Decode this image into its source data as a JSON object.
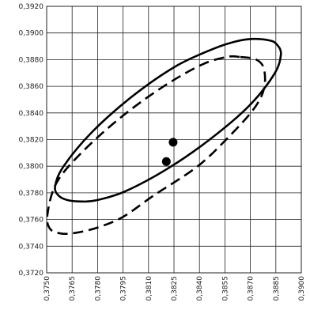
{
  "chart_data": {
    "type": "scatter",
    "title": "",
    "xlabel": "",
    "ylabel": "",
    "xlim": [
      0.375,
      0.39
    ],
    "ylim": [
      0.372,
      0.392
    ],
    "grid": true,
    "x_ticks": [
      0.375,
      0.3765,
      0.378,
      0.3795,
      0.381,
      0.3825,
      0.384,
      0.3855,
      0.387,
      0.3885,
      0.39
    ],
    "y_ticks": [
      0.372,
      0.374,
      0.376,
      0.378,
      0.38,
      0.382,
      0.384,
      0.386,
      0.388,
      0.39,
      0.392
    ],
    "x_tick_labels": [
      "0,3750",
      "0,3765",
      "0,3780",
      "0,3795",
      "0,3810",
      "0,3825",
      "0,3840",
      "0,3855",
      "0,3870",
      "0,3885",
      "0,3900"
    ],
    "y_tick_labels": [
      "0,3720",
      "0,3740",
      "0,3760",
      "0,3780",
      "0,3800",
      "0,3820",
      "0,3840",
      "0,3860",
      "0,3880",
      "0,3900",
      "0,3920"
    ],
    "points": [
      {
        "x": 0.38205,
        "y": 0.38035
      },
      {
        "x": 0.38245,
        "y": 0.3818
      }
    ],
    "ellipses": [
      {
        "style": "solid",
        "path": [
          [
            0.38705,
            0.38955
          ],
          [
            0.3881,
            0.38945
          ],
          [
            0.38855,
            0.38915
          ],
          [
            0.3888,
            0.3884
          ],
          [
            0.3884,
            0.3869
          ],
          [
            0.3869,
            0.3845
          ],
          [
            0.3846,
            0.382
          ],
          [
            0.3821,
            0.3798
          ],
          [
            0.3796,
            0.3781
          ],
          [
            0.37795,
            0.37745
          ],
          [
            0.3771,
            0.37735
          ],
          [
            0.37625,
            0.37745
          ],
          [
            0.3757,
            0.3778
          ],
          [
            0.3755,
            0.3785
          ],
          [
            0.376,
            0.38
          ],
          [
            0.3777,
            0.3826
          ],
          [
            0.3801,
            0.3853
          ],
          [
            0.3826,
            0.3875
          ],
          [
            0.3848,
            0.3888
          ],
          [
            0.3861,
            0.38935
          ]
        ]
      },
      {
        "style": "dashed",
        "path": [
          [
            0.3864,
            0.3882
          ],
          [
            0.38735,
            0.388
          ],
          [
            0.3878,
            0.3873
          ],
          [
            0.3878,
            0.3858
          ],
          [
            0.3872,
            0.3843
          ],
          [
            0.3858,
            0.3823
          ],
          [
            0.3839,
            0.38
          ],
          [
            0.3813,
            0.3778
          ],
          [
            0.3795,
            0.3762
          ],
          [
            0.378,
            0.3754
          ],
          [
            0.3767,
            0.375
          ],
          [
            0.37585,
            0.37495
          ],
          [
            0.3752,
            0.3753
          ],
          [
            0.37505,
            0.3764
          ],
          [
            0.3756,
            0.3788
          ],
          [
            0.3772,
            0.3812
          ],
          [
            0.3795,
            0.3838
          ],
          [
            0.3819,
            0.386
          ],
          [
            0.3841,
            0.3876
          ],
          [
            0.3856,
            0.3882
          ]
        ]
      }
    ]
  }
}
